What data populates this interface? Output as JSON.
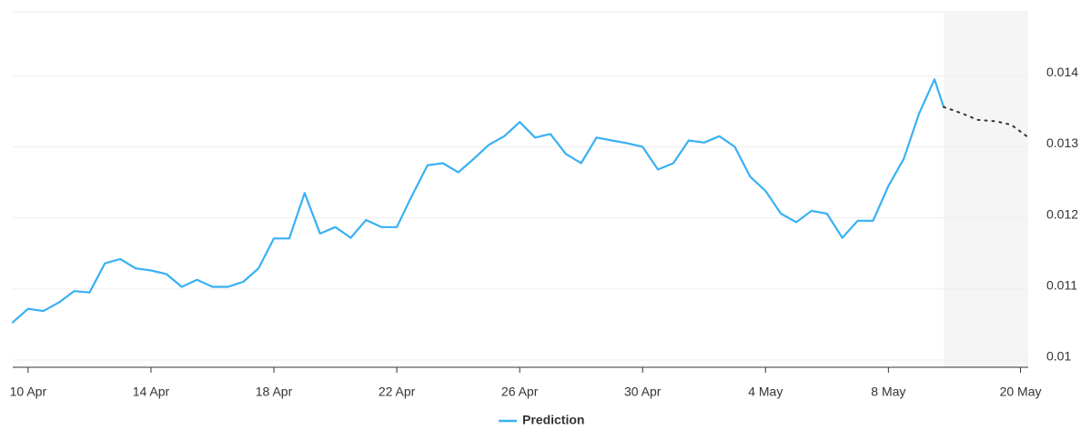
{
  "chart_data": {
    "type": "line",
    "series": [
      {
        "name": "Prediction",
        "color": "#38b1f4",
        "x": [
          0,
          1,
          2,
          3,
          4,
          5,
          6,
          7,
          8,
          9,
          10,
          11,
          12,
          13,
          14,
          15,
          16,
          17,
          18,
          19,
          20,
          21,
          22,
          23,
          24,
          25,
          26,
          27,
          28,
          29,
          30,
          31,
          32,
          33,
          34,
          35,
          36,
          37,
          38,
          39,
          40,
          41,
          42,
          43,
          44,
          45,
          46,
          47,
          48,
          49,
          50,
          51,
          52,
          53,
          54,
          55,
          56,
          57,
          58,
          59,
          60,
          60.6
        ],
        "values": [
          0.01053,
          0.01072,
          0.01069,
          0.01081,
          0.01097,
          0.01095,
          0.01136,
          0.01142,
          0.01129,
          0.01126,
          0.01121,
          0.01103,
          0.01113,
          0.01103,
          0.01103,
          0.0111,
          0.01129,
          0.01171,
          0.01171,
          0.01235,
          0.01178,
          0.01187,
          0.01172,
          0.01197,
          0.01187,
          0.01187,
          0.01232,
          0.01274,
          0.01277,
          0.01264,
          0.01283,
          0.01303,
          0.01315,
          0.01335,
          0.01313,
          0.01318,
          0.0129,
          0.01277,
          0.01313,
          0.01309,
          0.01305,
          0.013,
          0.01268,
          0.01277,
          0.01309,
          0.01306,
          0.01315,
          0.013,
          0.01258,
          0.01238,
          0.01206,
          0.01194,
          0.0121,
          0.01206,
          0.01172,
          0.01196,
          0.01196,
          0.01245,
          0.01283,
          0.01347,
          0.01395,
          0.01356
        ]
      },
      {
        "color": "#333333",
        "dashed": true,
        "x": [
          60.6,
          61.8,
          62.8,
          64,
          65,
          66
        ],
        "values": [
          0.01356,
          0.01347,
          0.01338,
          0.01336,
          0.01331,
          0.01315
        ]
      }
    ],
    "shaded_from": 60.6,
    "xlim": [
      0,
      66.1
    ],
    "xticks": [
      {
        "value": 1,
        "label": "10 Apr"
      },
      {
        "value": 9,
        "label": "14 Apr"
      },
      {
        "value": 17,
        "label": "18 Apr"
      },
      {
        "value": 25,
        "label": "22 Apr"
      },
      {
        "value": 33,
        "label": "26 Apr"
      },
      {
        "value": 41,
        "label": "30 Apr"
      },
      {
        "value": 49,
        "label": "4 May"
      },
      {
        "value": 57,
        "label": "8 May"
      },
      {
        "value": 65.6,
        "label": "20 May"
      }
    ],
    "ylim": [
      0.01,
      0.0149
    ],
    "yticks": [
      0.01,
      0.011,
      0.012,
      0.013,
      0.014
    ],
    "grid": true
  }
}
